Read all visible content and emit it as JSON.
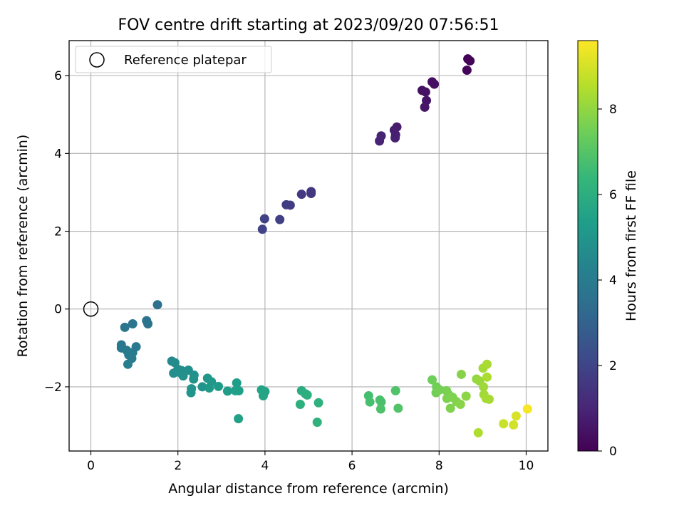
{
  "chart_data": {
    "type": "scatter",
    "title": "FOV centre drift starting at 2023/09/20 07:56:51",
    "xlabel": "Angular distance from reference (arcmin)",
    "ylabel": "Rotation from reference (arcmin)",
    "xlim": [
      -0.5,
      10.5
    ],
    "ylim": [
      -3.65,
      6.9
    ],
    "xticks": [
      "0",
      "2",
      "4",
      "6",
      "8",
      "10"
    ],
    "yticks": [
      "−2",
      "0",
      "2",
      "4",
      "6"
    ],
    "grid": true,
    "legend": {
      "position": "top-left",
      "entries": [
        "Reference platepar"
      ]
    },
    "reference_point": {
      "x": 0,
      "y": 0
    },
    "colorbar": {
      "label": "Hours from first FF file",
      "colormap": "viridis",
      "range": [
        0,
        9.6
      ],
      "ticks": [
        "0",
        "2",
        "4",
        "6",
        "8"
      ]
    },
    "points": [
      {
        "x": 8.66,
        "y": 6.43,
        "h": 0.05
      },
      {
        "x": 8.71,
        "y": 6.38,
        "h": 0.08
      },
      {
        "x": 8.64,
        "y": 6.14,
        "h": 0.12
      },
      {
        "x": 7.84,
        "y": 5.84,
        "h": 0.35
      },
      {
        "x": 7.89,
        "y": 5.78,
        "h": 0.38
      },
      {
        "x": 7.61,
        "y": 5.62,
        "h": 0.45
      },
      {
        "x": 7.69,
        "y": 5.58,
        "h": 0.48
      },
      {
        "x": 7.71,
        "y": 5.36,
        "h": 0.52
      },
      {
        "x": 7.67,
        "y": 5.19,
        "h": 0.55
      },
      {
        "x": 7.03,
        "y": 4.68,
        "h": 0.75
      },
      {
        "x": 6.97,
        "y": 4.6,
        "h": 0.78
      },
      {
        "x": 7.0,
        "y": 4.48,
        "h": 0.82
      },
      {
        "x": 6.99,
        "y": 4.4,
        "h": 0.85
      },
      {
        "x": 6.67,
        "y": 4.45,
        "h": 0.92
      },
      {
        "x": 6.63,
        "y": 4.32,
        "h": 0.95
      },
      {
        "x": 5.06,
        "y": 3.02,
        "h": 1.55
      },
      {
        "x": 5.06,
        "y": 2.97,
        "h": 1.58
      },
      {
        "x": 4.84,
        "y": 2.95,
        "h": 1.65
      },
      {
        "x": 4.58,
        "y": 2.67,
        "h": 1.72
      },
      {
        "x": 4.49,
        "y": 2.68,
        "h": 1.75
      },
      {
        "x": 4.34,
        "y": 2.3,
        "h": 1.85
      },
      {
        "x": 3.99,
        "y": 2.32,
        "h": 1.92
      },
      {
        "x": 3.94,
        "y": 2.05,
        "h": 1.95
      },
      {
        "x": 1.53,
        "y": 0.11,
        "h": 3.55
      },
      {
        "x": 1.28,
        "y": -0.3,
        "h": 3.62
      },
      {
        "x": 1.31,
        "y": -0.38,
        "h": 3.65
      },
      {
        "x": 0.96,
        "y": -0.38,
        "h": 3.72
      },
      {
        "x": 0.78,
        "y": -0.47,
        "h": 3.75
      },
      {
        "x": 0.7,
        "y": -0.92,
        "h": 3.85
      },
      {
        "x": 0.7,
        "y": -1.0,
        "h": 3.87
      },
      {
        "x": 1.04,
        "y": -0.97,
        "h": 3.9
      },
      {
        "x": 0.82,
        "y": -1.06,
        "h": 3.92
      },
      {
        "x": 0.96,
        "y": -1.12,
        "h": 3.95
      },
      {
        "x": 0.87,
        "y": -1.18,
        "h": 3.97
      },
      {
        "x": 0.94,
        "y": -1.27,
        "h": 4.0
      },
      {
        "x": 0.85,
        "y": -1.42,
        "h": 4.05
      },
      {
        "x": 1.86,
        "y": -1.34,
        "h": 4.55
      },
      {
        "x": 1.93,
        "y": -1.38,
        "h": 4.6
      },
      {
        "x": 2.0,
        "y": -1.55,
        "h": 4.65
      },
      {
        "x": 2.08,
        "y": -1.58,
        "h": 4.7
      },
      {
        "x": 2.24,
        "y": -1.57,
        "h": 4.75
      },
      {
        "x": 1.9,
        "y": -1.65,
        "h": 4.72
      },
      {
        "x": 2.04,
        "y": -1.63,
        "h": 4.78
      },
      {
        "x": 2.12,
        "y": -1.72,
        "h": 4.8
      },
      {
        "x": 2.37,
        "y": -1.7,
        "h": 4.85
      },
      {
        "x": 2.36,
        "y": -1.8,
        "h": 4.9
      },
      {
        "x": 2.31,
        "y": -2.05,
        "h": 4.95
      },
      {
        "x": 2.3,
        "y": -2.15,
        "h": 4.97
      },
      {
        "x": 2.56,
        "y": -2.0,
        "h": 5.0
      },
      {
        "x": 2.68,
        "y": -1.78,
        "h": 5.05
      },
      {
        "x": 2.77,
        "y": -1.87,
        "h": 5.1
      },
      {
        "x": 2.72,
        "y": -2.03,
        "h": 5.15
      },
      {
        "x": 2.93,
        "y": -1.99,
        "h": 5.2
      },
      {
        "x": 3.14,
        "y": -2.11,
        "h": 5.3
      },
      {
        "x": 3.35,
        "y": -1.9,
        "h": 5.35
      },
      {
        "x": 3.32,
        "y": -2.1,
        "h": 5.4
      },
      {
        "x": 3.4,
        "y": -2.1,
        "h": 5.42
      },
      {
        "x": 3.39,
        "y": -2.82,
        "h": 5.48
      },
      {
        "x": 3.92,
        "y": -2.08,
        "h": 5.55
      },
      {
        "x": 4.0,
        "y": -2.12,
        "h": 5.6
      },
      {
        "x": 3.96,
        "y": -2.23,
        "h": 5.62
      },
      {
        "x": 4.84,
        "y": -2.1,
        "h": 5.95
      },
      {
        "x": 4.93,
        "y": -2.18,
        "h": 6.0
      },
      {
        "x": 4.97,
        "y": -2.21,
        "h": 6.02
      },
      {
        "x": 4.81,
        "y": -2.45,
        "h": 6.05
      },
      {
        "x": 5.23,
        "y": -2.41,
        "h": 6.1
      },
      {
        "x": 5.2,
        "y": -2.91,
        "h": 6.15
      },
      {
        "x": 6.38,
        "y": -2.23,
        "h": 6.7
      },
      {
        "x": 6.41,
        "y": -2.39,
        "h": 6.75
      },
      {
        "x": 6.64,
        "y": -2.34,
        "h": 6.8
      },
      {
        "x": 6.67,
        "y": -2.39,
        "h": 6.82
      },
      {
        "x": 6.66,
        "y": -2.57,
        "h": 6.85
      },
      {
        "x": 7.0,
        "y": -2.1,
        "h": 6.9
      },
      {
        "x": 7.06,
        "y": -2.55,
        "h": 6.95
      },
      {
        "x": 7.84,
        "y": -1.82,
        "h": 7.45
      },
      {
        "x": 7.94,
        "y": -2.0,
        "h": 7.5
      },
      {
        "x": 7.93,
        "y": -2.15,
        "h": 7.52
      },
      {
        "x": 8.01,
        "y": -2.08,
        "h": 7.55
      },
      {
        "x": 8.17,
        "y": -2.1,
        "h": 7.6
      },
      {
        "x": 8.22,
        "y": -2.2,
        "h": 7.65
      },
      {
        "x": 8.18,
        "y": -2.3,
        "h": 7.67
      },
      {
        "x": 8.31,
        "y": -2.27,
        "h": 7.7
      },
      {
        "x": 8.26,
        "y": -2.55,
        "h": 7.72
      },
      {
        "x": 8.4,
        "y": -2.38,
        "h": 7.75
      },
      {
        "x": 8.51,
        "y": -1.68,
        "h": 7.82
      },
      {
        "x": 8.49,
        "y": -2.45,
        "h": 7.85
      },
      {
        "x": 8.62,
        "y": -2.24,
        "h": 7.9
      },
      {
        "x": 8.86,
        "y": -1.8,
        "h": 8.05
      },
      {
        "x": 8.93,
        "y": -1.85,
        "h": 8.1
      },
      {
        "x": 9.02,
        "y": -2.0,
        "h": 8.2
      },
      {
        "x": 9.03,
        "y": -2.2,
        "h": 8.25
      },
      {
        "x": 9.08,
        "y": -2.3,
        "h": 8.3
      },
      {
        "x": 9.15,
        "y": -2.32,
        "h": 8.32
      },
      {
        "x": 9.01,
        "y": -1.52,
        "h": 8.28
      },
      {
        "x": 9.1,
        "y": -1.42,
        "h": 8.35
      },
      {
        "x": 9.1,
        "y": -1.75,
        "h": 8.4
      },
      {
        "x": 8.9,
        "y": -3.18,
        "h": 8.45
      },
      {
        "x": 9.48,
        "y": -2.95,
        "h": 8.85
      },
      {
        "x": 9.71,
        "y": -2.98,
        "h": 8.95
      },
      {
        "x": 9.77,
        "y": -2.75,
        "h": 9.05
      },
      {
        "x": 10.03,
        "y": -2.57,
        "h": 9.5
      }
    ]
  }
}
